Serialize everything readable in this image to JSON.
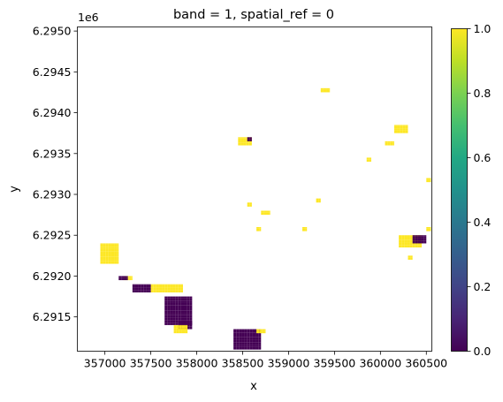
{
  "chart_data": {
    "type": "heatmap",
    "title": "band = 1, spatial_ref = 0",
    "xlabel": "x",
    "ylabel": "y",
    "y_offset_label": "1e6",
    "xlim": [
      356700,
      360560
    ],
    "ylim": [
      6291080,
      6295050
    ],
    "x_ticks": [
      357000,
      357500,
      358000,
      358500,
      359000,
      359500,
      360000,
      360500
    ],
    "x_tick_labels": [
      "357000",
      "357500",
      "358000",
      "358500",
      "359000",
      "359500",
      "360000",
      "360500"
    ],
    "y_ticks": [
      6291500,
      6292000,
      6292500,
      6293000,
      6293500,
      6294000,
      6294500,
      6295000
    ],
    "y_tick_labels": [
      "6.2915",
      "6.2920",
      "6.2925",
      "6.2930",
      "6.2935",
      "6.2940",
      "6.2945",
      "6.2950"
    ],
    "colorbar": {
      "colormap": "viridis",
      "min": 0.0,
      "max": 1.0,
      "ticks": [
        0.0,
        0.2,
        0.4,
        0.6,
        0.8,
        1.0
      ],
      "tick_labels": [
        "0.0",
        "0.2",
        "0.4",
        "0.6",
        "0.8",
        "1.0"
      ]
    },
    "colors": {
      "value_1": "#fde725",
      "value_0": "#440154"
    },
    "cell_size": 30,
    "regions": [
      {
        "value": 1,
        "x": [
          356950,
          357150
        ],
        "y": [
          6292150,
          6292400
        ]
      },
      {
        "value": 1,
        "x": [
          357200,
          357300
        ],
        "y": [
          6291950,
          6292000
        ]
      },
      {
        "value": 0,
        "x": [
          357150,
          357250
        ],
        "y": [
          6291950,
          6292000
        ]
      },
      {
        "value": 1,
        "x": [
          357500,
          357850
        ],
        "y": [
          6291800,
          6291900
        ]
      },
      {
        "value": 0,
        "x": [
          357300,
          357500
        ],
        "y": [
          6291800,
          6291900
        ]
      },
      {
        "value": 0,
        "x": [
          357650,
          357950
        ],
        "y": [
          6291400,
          6291750
        ]
      },
      {
        "value": 0,
        "x": [
          357800,
          357950
        ],
        "y": [
          6291350,
          6291450
        ]
      },
      {
        "value": 1,
        "x": [
          357750,
          357900
        ],
        "y": [
          6291300,
          6291400
        ]
      },
      {
        "value": 0,
        "x": [
          358400,
          358700
        ],
        "y": [
          6291100,
          6291350
        ]
      },
      {
        "value": 1,
        "x": [
          358650,
          358750
        ],
        "y": [
          6291300,
          6291350
        ]
      },
      {
        "value": 1,
        "x": [
          358450,
          358600
        ],
        "y": [
          6293600,
          6293700
        ]
      },
      {
        "value": 0,
        "x": [
          358550,
          358600
        ],
        "y": [
          6293650,
          6293700
        ]
      },
      {
        "value": 1,
        "x": [
          358700,
          358800
        ],
        "y": [
          6292750,
          6292800
        ]
      },
      {
        "value": 1,
        "x": [
          358550,
          358600
        ],
        "y": [
          6292850,
          6292900
        ]
      },
      {
        "value": 1,
        "x": [
          358650,
          358700
        ],
        "y": [
          6292550,
          6292600
        ]
      },
      {
        "value": 1,
        "x": [
          359150,
          359200
        ],
        "y": [
          6292550,
          6292600
        ]
      },
      {
        "value": 1,
        "x": [
          359300,
          359350
        ],
        "y": [
          6292900,
          6292950
        ]
      },
      {
        "value": 1,
        "x": [
          359350,
          359450
        ],
        "y": [
          6294250,
          6294300
        ]
      },
      {
        "value": 1,
        "x": [
          359850,
          359900
        ],
        "y": [
          6293400,
          6293450
        ]
      },
      {
        "value": 1,
        "x": [
          360050,
          360150
        ],
        "y": [
          6293600,
          6293650
        ]
      },
      {
        "value": 1,
        "x": [
          360150,
          360300
        ],
        "y": [
          6293750,
          6293850
        ]
      },
      {
        "value": 1,
        "x": [
          360200,
          360450
        ],
        "y": [
          6292350,
          6292500
        ]
      },
      {
        "value": 0,
        "x": [
          360350,
          360500
        ],
        "y": [
          6292400,
          6292500
        ]
      },
      {
        "value": 1,
        "x": [
          360300,
          360350
        ],
        "y": [
          6292200,
          6292250
        ]
      },
      {
        "value": 1,
        "x": [
          360500,
          360550
        ],
        "y": [
          6292550,
          6292600
        ]
      },
      {
        "value": 1,
        "x": [
          360500,
          360550
        ],
        "y": [
          6293150,
          6293200
        ]
      }
    ]
  }
}
